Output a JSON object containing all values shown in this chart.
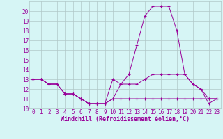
{
  "hours": [
    0,
    1,
    2,
    3,
    4,
    5,
    6,
    7,
    8,
    9,
    10,
    11,
    12,
    13,
    14,
    15,
    16,
    17,
    18,
    19,
    20,
    21,
    22,
    23
  ],
  "line1": [
    13,
    13,
    12.5,
    12.5,
    11.5,
    11.5,
    11,
    10.5,
    10.5,
    10.5,
    11,
    12.5,
    13.5,
    16.5,
    19.5,
    20.5,
    20.5,
    20.5,
    18,
    13.5,
    12.5,
    12,
    10.5,
    11
  ],
  "line2": [
    13,
    13,
    12.5,
    12.5,
    11.5,
    11.5,
    11,
    10.5,
    10.5,
    10.5,
    13,
    12.5,
    12.5,
    12.5,
    13,
    13.5,
    13.5,
    13.5,
    13.5,
    13.5,
    12.5,
    12,
    11,
    11
  ],
  "line3": [
    13,
    13,
    12.5,
    12.5,
    11.5,
    11.5,
    11,
    10.5,
    10.5,
    10.5,
    11,
    11,
    11,
    11,
    11,
    11,
    11,
    11,
    11,
    11,
    11,
    11,
    11,
    11
  ],
  "line_color": "#990099",
  "bg_color": "#d6f5f5",
  "grid_color": "#b0c8c8",
  "xlabel": "Windchill (Refroidissement éolien,°C)",
  "ylim": [
    10,
    21
  ],
  "xlim": [
    -0.5,
    23.5
  ],
  "yticks": [
    10,
    11,
    12,
    13,
    14,
    15,
    16,
    17,
    18,
    19,
    20
  ],
  "xticks": [
    0,
    1,
    2,
    3,
    4,
    5,
    6,
    7,
    8,
    9,
    10,
    11,
    12,
    13,
    14,
    15,
    16,
    17,
    18,
    19,
    20,
    21,
    22,
    23
  ],
  "tick_fontsize": 5.5,
  "xlabel_fontsize": 6.0
}
